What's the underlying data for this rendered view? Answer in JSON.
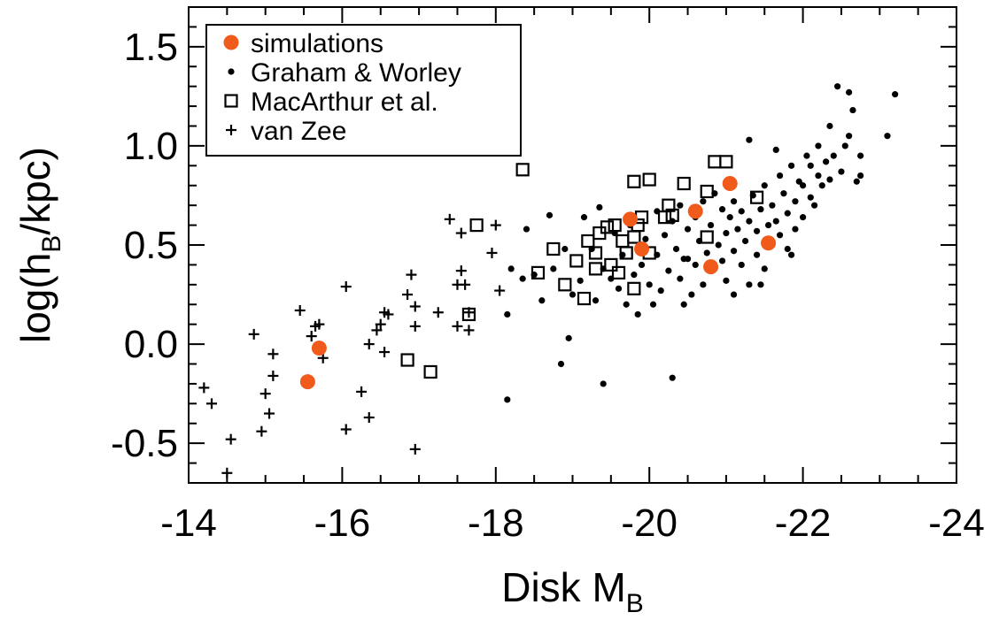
{
  "chart_data": {
    "type": "scatter",
    "xlabel": "Disk M",
    "xlabel_sub": "B",
    "ylabel_prefix": "log(h",
    "ylabel_sub": "B",
    "ylabel_suffix": "/kpc)",
    "xlim": [
      -14,
      -24
    ],
    "ylim": [
      -0.7,
      1.7
    ],
    "x_ticks": [
      -14,
      -16,
      -18,
      -20,
      -22,
      -24
    ],
    "x_tick_labels": [
      "-14",
      "-16",
      "-18",
      "-20",
      "-22",
      "-24"
    ],
    "y_ticks": [
      -0.5,
      0.0,
      0.5,
      1.0,
      1.5
    ],
    "y_tick_labels": [
      "-0.5",
      "0.0",
      "0.5",
      "1.0",
      "1.5"
    ],
    "x_minor_step": 0.5,
    "y_minor_step": 0.1,
    "legend_position": "top-left",
    "series": [
      {
        "name": "simulations",
        "marker": "filled-circle",
        "color": "#f05a1a",
        "points": [
          [
            -15.7,
            -0.02
          ],
          [
            -15.55,
            -0.19
          ],
          [
            -19.75,
            0.63
          ],
          [
            -19.9,
            0.48
          ],
          [
            -20.6,
            0.67
          ],
          [
            -21.05,
            0.81
          ],
          [
            -20.8,
            0.39
          ],
          [
            -21.55,
            0.51
          ]
        ]
      },
      {
        "name": "Graham & Worley",
        "marker": "dot",
        "color": "#000000",
        "points": [
          [
            -18.15,
            -0.28
          ],
          [
            -18.2,
            0.38
          ],
          [
            -18.15,
            0.15
          ],
          [
            -18.35,
            0.33
          ],
          [
            -18.5,
            0.35
          ],
          [
            -18.7,
            0.65
          ],
          [
            -18.4,
            0.58
          ],
          [
            -18.6,
            0.22
          ],
          [
            -18.75,
            0.38
          ],
          [
            -18.85,
            -0.1
          ],
          [
            -18.9,
            0.48
          ],
          [
            -18.95,
            0.03
          ],
          [
            -19.0,
            0.25
          ],
          [
            -19.1,
            0.32
          ],
          [
            -19.15,
            0.64
          ],
          [
            -19.25,
            0.48
          ],
          [
            -19.3,
            0.22
          ],
          [
            -19.35,
            0.69
          ],
          [
            -19.4,
            0.38
          ],
          [
            -19.4,
            -0.2
          ],
          [
            -19.5,
            0.33
          ],
          [
            -19.55,
            0.56
          ],
          [
            -19.6,
            0.28
          ],
          [
            -19.65,
            0.45
          ],
          [
            -19.7,
            0.2
          ],
          [
            -19.75,
            0.6
          ],
          [
            -19.8,
            0.35
          ],
          [
            -19.85,
            0.15
          ],
          [
            -19.9,
            0.4
          ],
          [
            -19.95,
            0.53
          ],
          [
            -20.0,
            0.3
          ],
          [
            -20.05,
            0.2
          ],
          [
            -20.1,
            0.67
          ],
          [
            -20.1,
            0.45
          ],
          [
            -20.15,
            0.27
          ],
          [
            -20.2,
            0.55
          ],
          [
            -20.25,
            0.37
          ],
          [
            -20.3,
            0.62
          ],
          [
            -20.3,
            -0.17
          ],
          [
            -20.35,
            0.48
          ],
          [
            -20.4,
            0.33
          ],
          [
            -20.4,
            0.7
          ],
          [
            -20.45,
            0.2
          ],
          [
            -20.5,
            0.58
          ],
          [
            -20.5,
            0.43
          ],
          [
            -20.55,
            0.25
          ],
          [
            -20.6,
            0.64
          ],
          [
            -20.6,
            0.4
          ],
          [
            -20.65,
            0.52
          ],
          [
            -20.7,
            0.72
          ],
          [
            -20.7,
            0.3
          ],
          [
            -20.75,
            0.46
          ],
          [
            -20.8,
            0.6
          ],
          [
            -20.85,
            0.38
          ],
          [
            -20.85,
            0.76
          ],
          [
            -20.9,
            0.5
          ],
          [
            -20.95,
            0.68
          ],
          [
            -20.95,
            0.42
          ],
          [
            -21.0,
            0.56
          ],
          [
            -21.0,
            0.32
          ],
          [
            -21.05,
            0.64
          ],
          [
            -21.1,
            0.47
          ],
          [
            -21.1,
            0.72
          ],
          [
            -21.15,
            0.58
          ],
          [
            -21.2,
            0.4
          ],
          [
            -21.2,
            0.67
          ],
          [
            -21.25,
            0.52
          ],
          [
            -21.3,
            0.3
          ],
          [
            -21.3,
            0.62
          ],
          [
            -21.35,
            0.75
          ],
          [
            -21.4,
            0.45
          ],
          [
            -21.4,
            0.57
          ],
          [
            -21.45,
            0.68
          ],
          [
            -21.5,
            0.38
          ],
          [
            -21.5,
            0.8
          ],
          [
            -21.55,
            0.6
          ],
          [
            -21.6,
            0.5
          ],
          [
            -21.6,
            0.7
          ],
          [
            -21.65,
            0.62
          ],
          [
            -21.7,
            0.85
          ],
          [
            -21.7,
            0.55
          ],
          [
            -21.75,
            0.76
          ],
          [
            -21.8,
            0.66
          ],
          [
            -21.8,
            0.48
          ],
          [
            -21.85,
            0.9
          ],
          [
            -21.9,
            0.58
          ],
          [
            -21.9,
            0.72
          ],
          [
            -21.95,
            0.82
          ],
          [
            -22.0,
            0.64
          ],
          [
            -22.0,
            0.8
          ],
          [
            -22.05,
            0.95
          ],
          [
            -22.1,
            0.74
          ],
          [
            -22.1,
            0.9
          ],
          [
            -22.15,
            0.7
          ],
          [
            -22.2,
            0.85
          ],
          [
            -22.2,
            1.0
          ],
          [
            -22.25,
            0.8
          ],
          [
            -22.3,
            0.92
          ],
          [
            -22.35,
            1.1
          ],
          [
            -22.35,
            0.83
          ],
          [
            -22.4,
            0.95
          ],
          [
            -22.45,
            1.3
          ],
          [
            -22.5,
            0.87
          ],
          [
            -22.55,
            1.0
          ],
          [
            -22.6,
            1.05
          ],
          [
            -22.65,
            1.18
          ],
          [
            -22.7,
            0.82
          ],
          [
            -22.75,
            0.95
          ],
          [
            -22.6,
            1.27
          ],
          [
            -22.75,
            0.85
          ],
          [
            -21.3,
            1.03
          ],
          [
            -21.65,
            0.98
          ],
          [
            -21.85,
            0.45
          ],
          [
            -21.1,
            0.25
          ],
          [
            -21.45,
            0.3
          ],
          [
            -20.45,
            0.43
          ],
          [
            -23.1,
            1.05
          ],
          [
            -23.2,
            1.26
          ]
        ]
      },
      {
        "name": "MacArthur et al.",
        "marker": "open-square",
        "color": "#000000",
        "points": [
          [
            -16.85,
            -0.08
          ],
          [
            -17.15,
            -0.14
          ],
          [
            -17.65,
            0.15
          ],
          [
            -17.75,
            0.6
          ],
          [
            -18.35,
            0.88
          ],
          [
            -18.55,
            0.36
          ],
          [
            -18.9,
            0.3
          ],
          [
            -18.75,
            0.48
          ],
          [
            -19.05,
            0.42
          ],
          [
            -19.15,
            0.23
          ],
          [
            -19.2,
            0.52
          ],
          [
            -19.3,
            0.46
          ],
          [
            -19.3,
            0.38
          ],
          [
            -19.35,
            0.56
          ],
          [
            -19.45,
            0.59
          ],
          [
            -19.5,
            0.4
          ],
          [
            -19.55,
            0.6
          ],
          [
            -19.6,
            0.36
          ],
          [
            -19.65,
            0.52
          ],
          [
            -19.7,
            0.46
          ],
          [
            -19.8,
            0.54
          ],
          [
            -19.85,
            0.6
          ],
          [
            -19.9,
            0.64
          ],
          [
            -19.8,
            0.28
          ],
          [
            -19.8,
            0.82
          ],
          [
            -20.0,
            0.46
          ],
          [
            -20.0,
            0.83
          ],
          [
            -20.25,
            0.7
          ],
          [
            -20.3,
            0.65
          ],
          [
            -20.2,
            0.64
          ],
          [
            -20.45,
            0.81
          ],
          [
            -20.75,
            0.54
          ],
          [
            -20.85,
            0.92
          ],
          [
            -20.75,
            0.77
          ],
          [
            -21.0,
            0.92
          ],
          [
            -21.4,
            0.74
          ]
        ]
      },
      {
        "name": "van Zee",
        "marker": "plus",
        "color": "#000000",
        "points": [
          [
            -14.2,
            -0.22
          ],
          [
            -14.3,
            -0.3
          ],
          [
            -14.55,
            -0.48
          ],
          [
            -14.5,
            -0.65
          ],
          [
            -14.85,
            0.05
          ],
          [
            -14.95,
            -0.44
          ],
          [
            -15.0,
            -0.25
          ],
          [
            -15.05,
            -0.35
          ],
          [
            -15.1,
            -0.16
          ],
          [
            -15.1,
            -0.05
          ],
          [
            -15.45,
            0.17
          ],
          [
            -15.6,
            0.04
          ],
          [
            -15.65,
            0.09
          ],
          [
            -15.7,
            0.1
          ],
          [
            -15.75,
            -0.07
          ],
          [
            -16.05,
            0.29
          ],
          [
            -16.05,
            -0.43
          ],
          [
            -16.25,
            -0.24
          ],
          [
            -16.35,
            0.0
          ],
          [
            -16.35,
            -0.37
          ],
          [
            -16.45,
            0.07
          ],
          [
            -16.5,
            0.1
          ],
          [
            -16.55,
            0.16
          ],
          [
            -16.6,
            0.15
          ],
          [
            -16.55,
            -0.04
          ],
          [
            -16.85,
            0.25
          ],
          [
            -16.9,
            0.35
          ],
          [
            -16.95,
            0.19
          ],
          [
            -16.95,
            0.09
          ],
          [
            -16.95,
            -0.53
          ],
          [
            -17.25,
            0.16
          ],
          [
            -17.4,
            0.63
          ],
          [
            -17.5,
            0.3
          ],
          [
            -17.5,
            0.09
          ],
          [
            -17.55,
            0.37
          ],
          [
            -17.55,
            0.56
          ],
          [
            -17.6,
            0.3
          ],
          [
            -17.65,
            0.16
          ],
          [
            -17.65,
            0.07
          ],
          [
            -17.95,
            0.46
          ],
          [
            -18.0,
            0.6
          ],
          [
            -18.05,
            0.27
          ]
        ]
      }
    ]
  }
}
